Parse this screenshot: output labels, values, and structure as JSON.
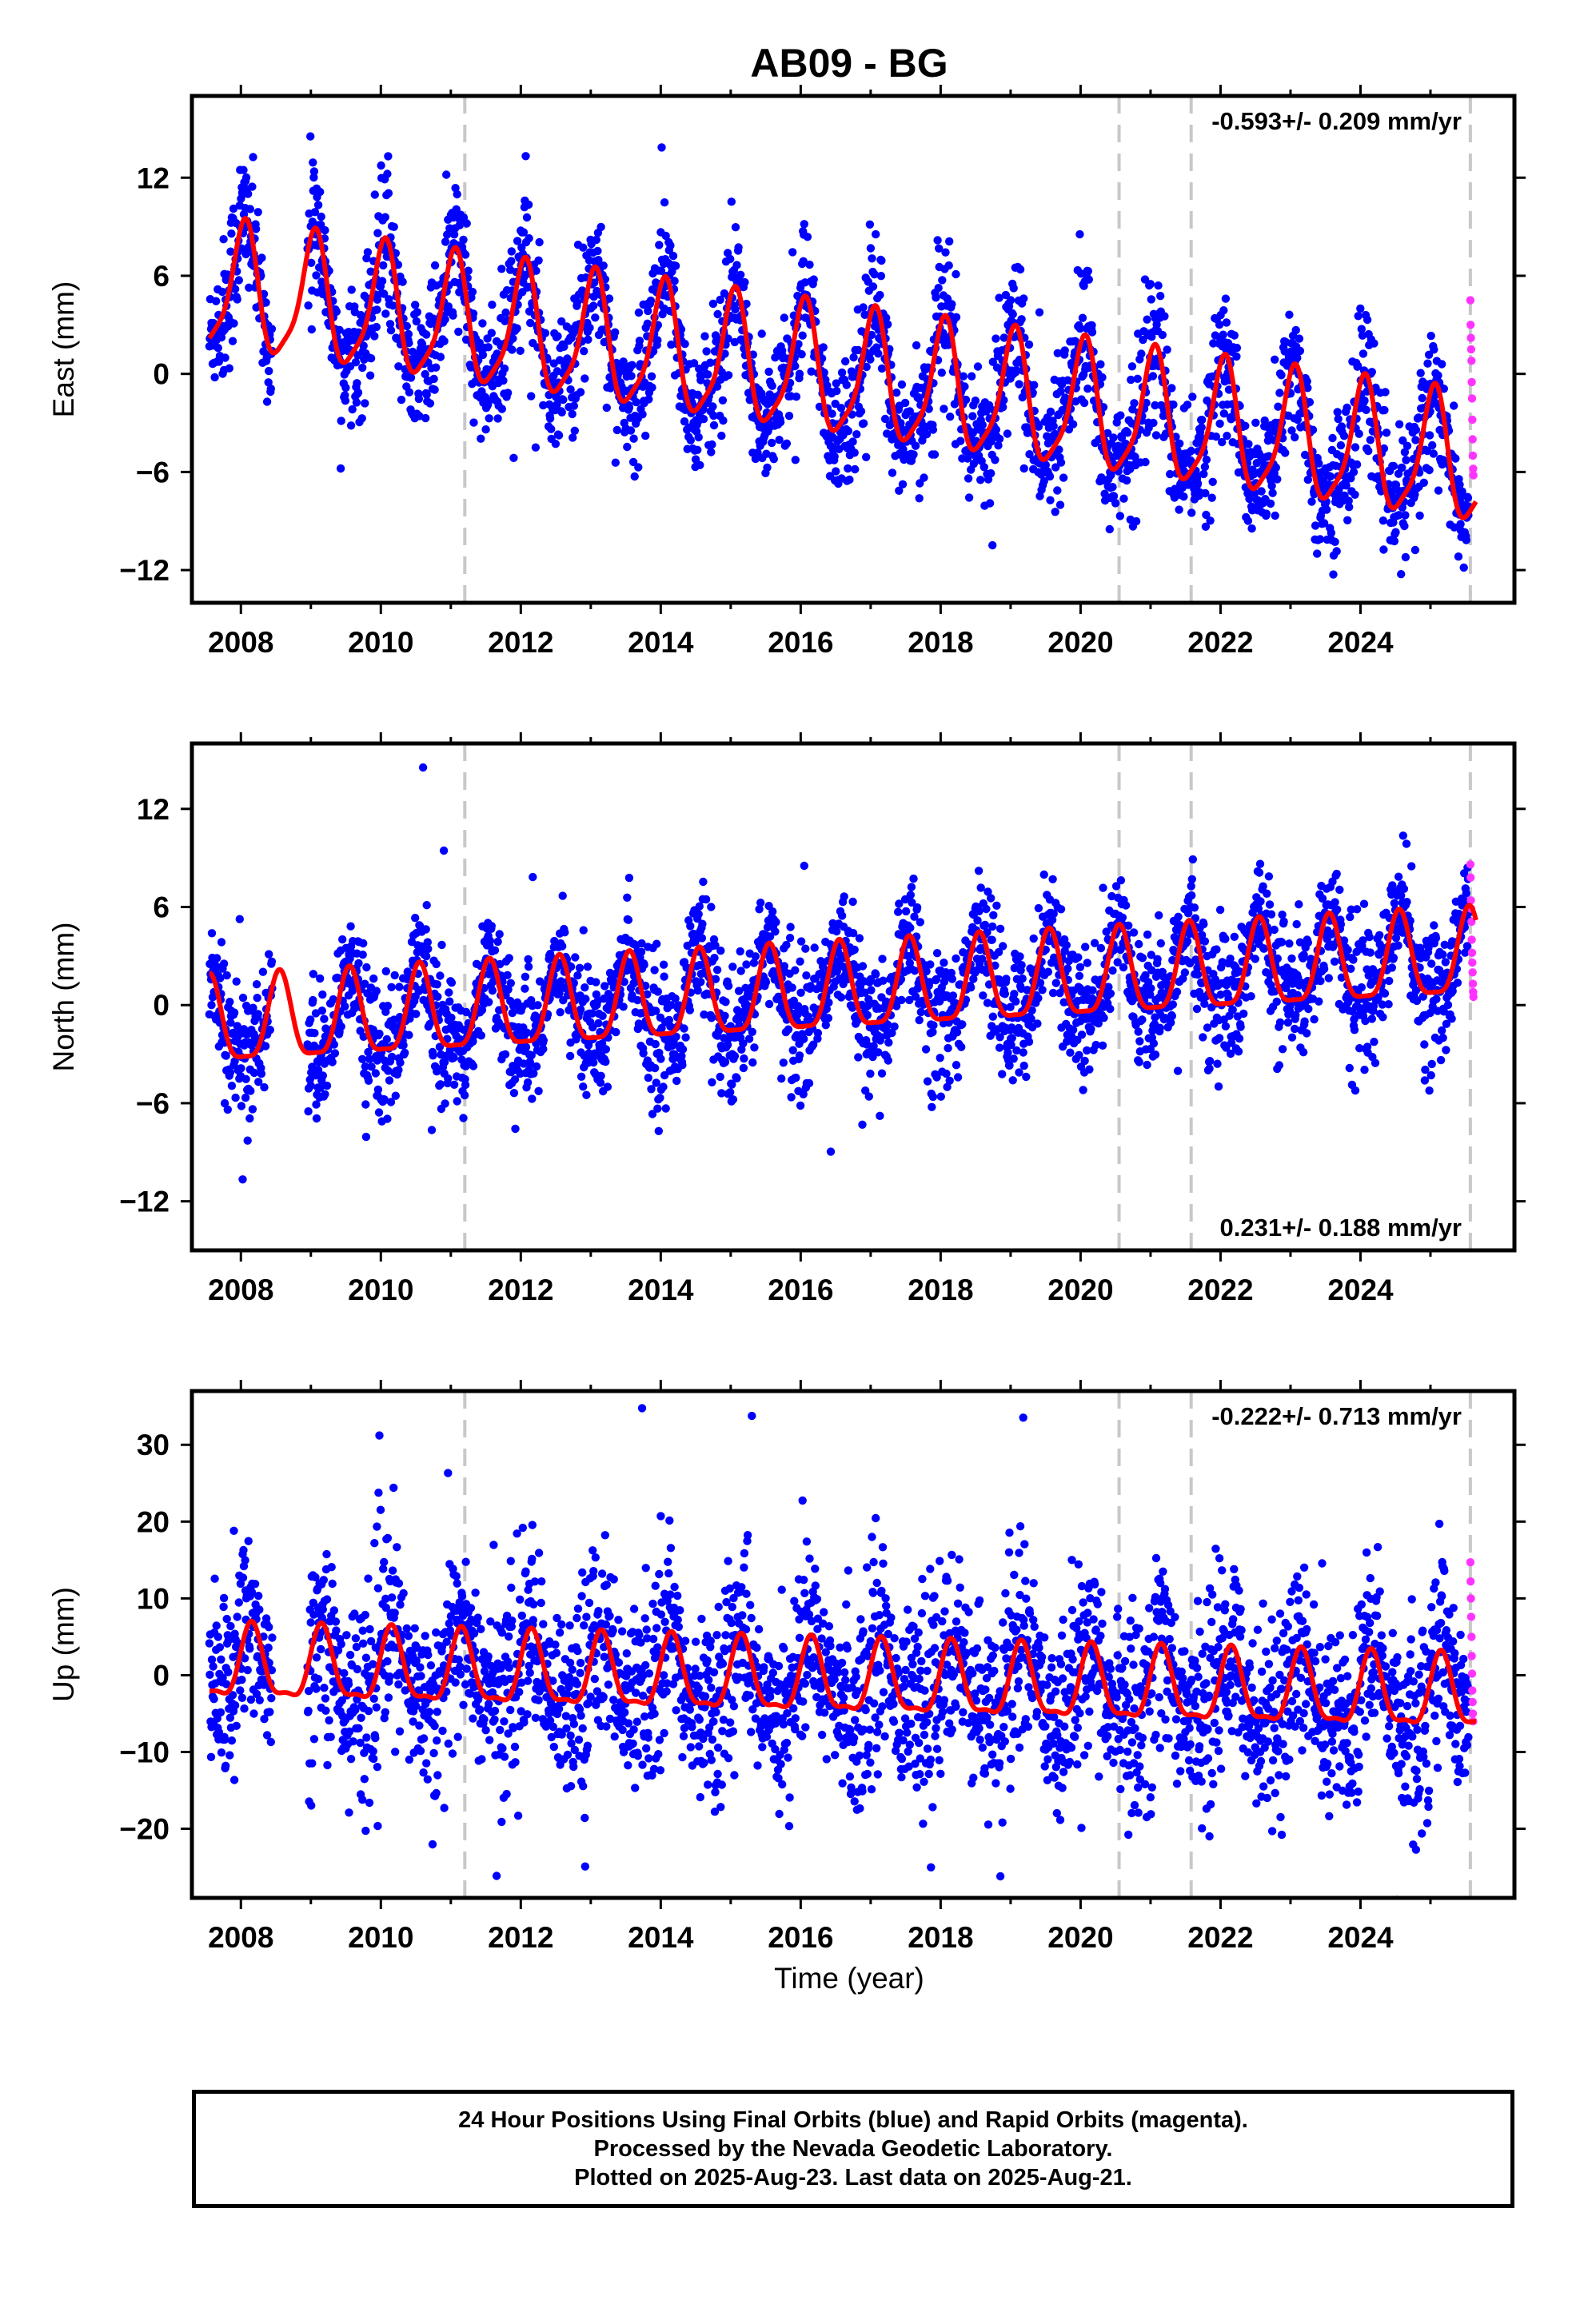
{
  "title": "AB09 - BG",
  "colors": {
    "final": "#0000ff",
    "rapid": "#ff33ff",
    "model": "#ff0000",
    "event_line": "#c8c8c8"
  },
  "xlabel": "Time (year)",
  "footer": {
    "line1": "24 Hour Positions Using Final Orbits (blue) and Rapid Orbits (magenta).",
    "line2": "Processed by the Nevada Geodetic Laboratory.",
    "line3": "Plotted on 2025-Aug-23. Last data on 2025-Aug-21."
  },
  "chart_data": [
    {
      "type": "scatter",
      "component": "East",
      "ylabel": "East (mm)",
      "rate_label": "-0.593+/- 0.209 mm/yr",
      "rate_position": "top-right",
      "xlim": [
        2007.3,
        2026.2
      ],
      "ylim": [
        -14,
        17
      ],
      "xticks": [
        2008,
        2010,
        2012,
        2014,
        2016,
        2018,
        2020,
        2022,
        2024
      ],
      "yticks": [
        -12,
        -6,
        0,
        6,
        12
      ],
      "event_lines": [
        2011.2,
        2020.55,
        2021.58,
        2025.57
      ],
      "trend": {
        "rate": -0.593,
        "intercept_2016": 0.2,
        "amp1": 3.8,
        "phase1": 1.3,
        "amp2": 0.9,
        "phase2": 0.4
      },
      "noise": 2.0,
      "rapid_values": [
        4.5,
        3.0,
        2.2,
        1.5,
        0.8,
        -0.5,
        -1.5,
        -2.8,
        -4.0,
        -5.0,
        -5.8,
        -6.2
      ]
    },
    {
      "type": "scatter",
      "component": "North",
      "ylabel": "North (mm)",
      "rate_label": "0.231+/- 0.188 mm/yr",
      "rate_position": "bottom-right",
      "xlim": [
        2007.3,
        2026.2
      ],
      "ylim": [
        -15,
        16
      ],
      "xticks": [
        2008,
        2010,
        2012,
        2014,
        2016,
        2018,
        2020,
        2022,
        2024
      ],
      "yticks": [
        -12,
        -6,
        0,
        6,
        12
      ],
      "event_lines": [
        2011.2,
        2020.55,
        2021.58,
        2025.57
      ],
      "trend": {
        "rate": 0.231,
        "intercept_2016": 0.6,
        "amp1": 2.6,
        "phase1": -1.9,
        "amp2": 0.7,
        "phase2": 0.9
      },
      "noise": 1.9,
      "rapid_values": [
        8.6,
        7.8,
        6.4,
        5.9,
        5.1,
        4.0,
        3.2,
        2.6,
        2.0,
        1.3,
        0.8,
        0.5
      ]
    },
    {
      "type": "scatter",
      "component": "Up",
      "ylabel": "Up (mm)",
      "rate_label": "-0.222+/- 0.713 mm/yr",
      "rate_position": "top-right",
      "xlim": [
        2007.3,
        2026.2
      ],
      "ylim": [
        -29,
        37
      ],
      "xticks": [
        2008,
        2010,
        2012,
        2014,
        2016,
        2018,
        2020,
        2022,
        2024
      ],
      "yticks": [
        -20,
        -10,
        0,
        10,
        20,
        30
      ],
      "event_lines": [
        2011.2,
        2020.55,
        2021.58,
        2025.57
      ],
      "trend": {
        "rate": -0.222,
        "intercept_2016": -0.8,
        "amp1": 4.6,
        "phase1": 0.6,
        "amp2": 1.5,
        "phase2": -0.3
      },
      "noise": 6.2,
      "rapid_values": [
        14.7,
        12.2,
        10.0,
        7.6,
        5.0,
        2.5,
        0.2,
        -2.0,
        -3.5,
        -5.0,
        -6.0
      ]
    }
  ]
}
